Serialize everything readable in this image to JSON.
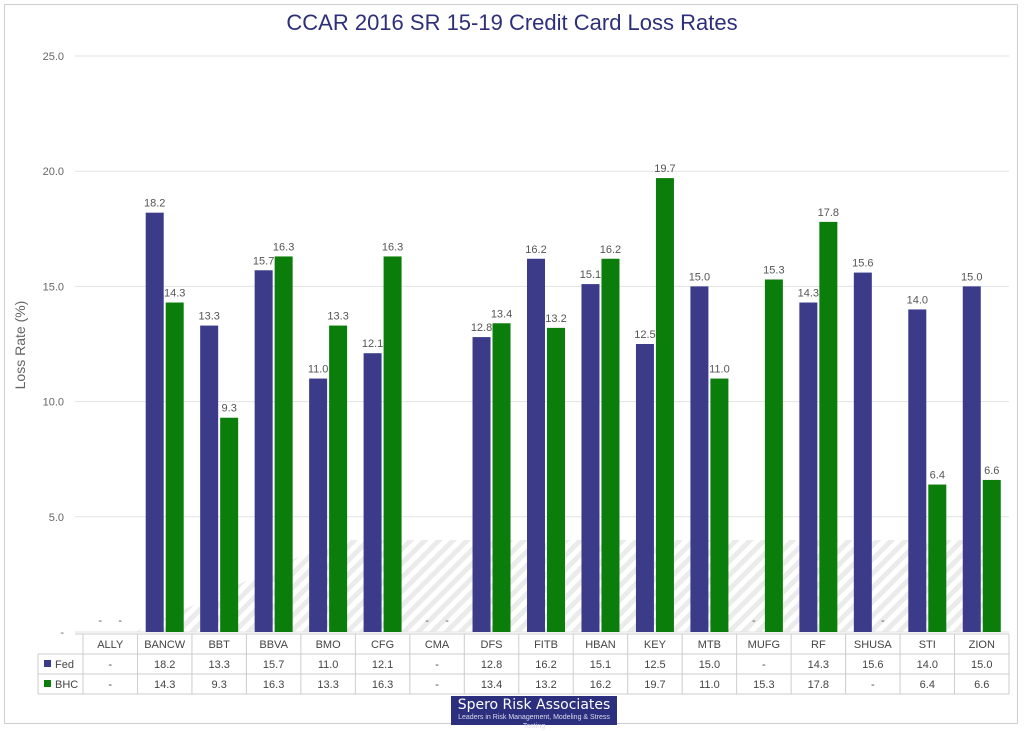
{
  "chart_data": {
    "type": "bar",
    "title": "CCAR 2016 SR 15-19 Credit Card Loss Rates",
    "xlabel": "",
    "ylabel": "Loss Rate (%)",
    "ylim": [
      0,
      25
    ],
    "yticks": [
      "-",
      "5.0",
      "10.0",
      "15.0",
      "20.0",
      "25.0"
    ],
    "grid": true,
    "legend": "data-table-left",
    "categories": [
      "ALLY",
      "BANCW",
      "BBT",
      "BBVA",
      "BMO",
      "CFG",
      "CMA",
      "DFS",
      "FITB",
      "HBAN",
      "KEY",
      "MTB",
      "MUFG",
      "RF",
      "SHUSA",
      "STI",
      "ZION"
    ],
    "series": [
      {
        "name": "Fed",
        "color": "#3b3b8a",
        "values": [
          null,
          18.2,
          13.3,
          15.7,
          11.0,
          12.1,
          null,
          12.8,
          16.2,
          15.1,
          12.5,
          15.0,
          null,
          14.3,
          15.6,
          14.0,
          15.0
        ],
        "labels": [
          "-",
          "18.2",
          "13.3",
          "15.7",
          "11.0",
          "12.1",
          "-",
          "12.8",
          "16.2",
          "15.1",
          "12.5",
          "15.0",
          "-",
          "14.3",
          "15.6",
          "14.0",
          "15.0"
        ]
      },
      {
        "name": "BHC",
        "color": "#0a7d0a",
        "values": [
          null,
          14.3,
          9.3,
          16.3,
          13.3,
          16.3,
          null,
          13.4,
          13.2,
          16.2,
          19.7,
          11.0,
          15.3,
          17.8,
          null,
          6.4,
          6.6
        ],
        "labels": [
          "-",
          "14.3",
          "9.3",
          "16.3",
          "13.3",
          "16.3",
          "-",
          "13.4",
          "13.2",
          "16.2",
          "19.7",
          "11.0",
          "15.3",
          "17.8",
          "-",
          "6.4",
          "6.6"
        ]
      }
    ]
  },
  "logo": {
    "name": "Spero Risk Associates",
    "tagline": "Leaders in Risk Management, Modeling & Stress Testing"
  }
}
